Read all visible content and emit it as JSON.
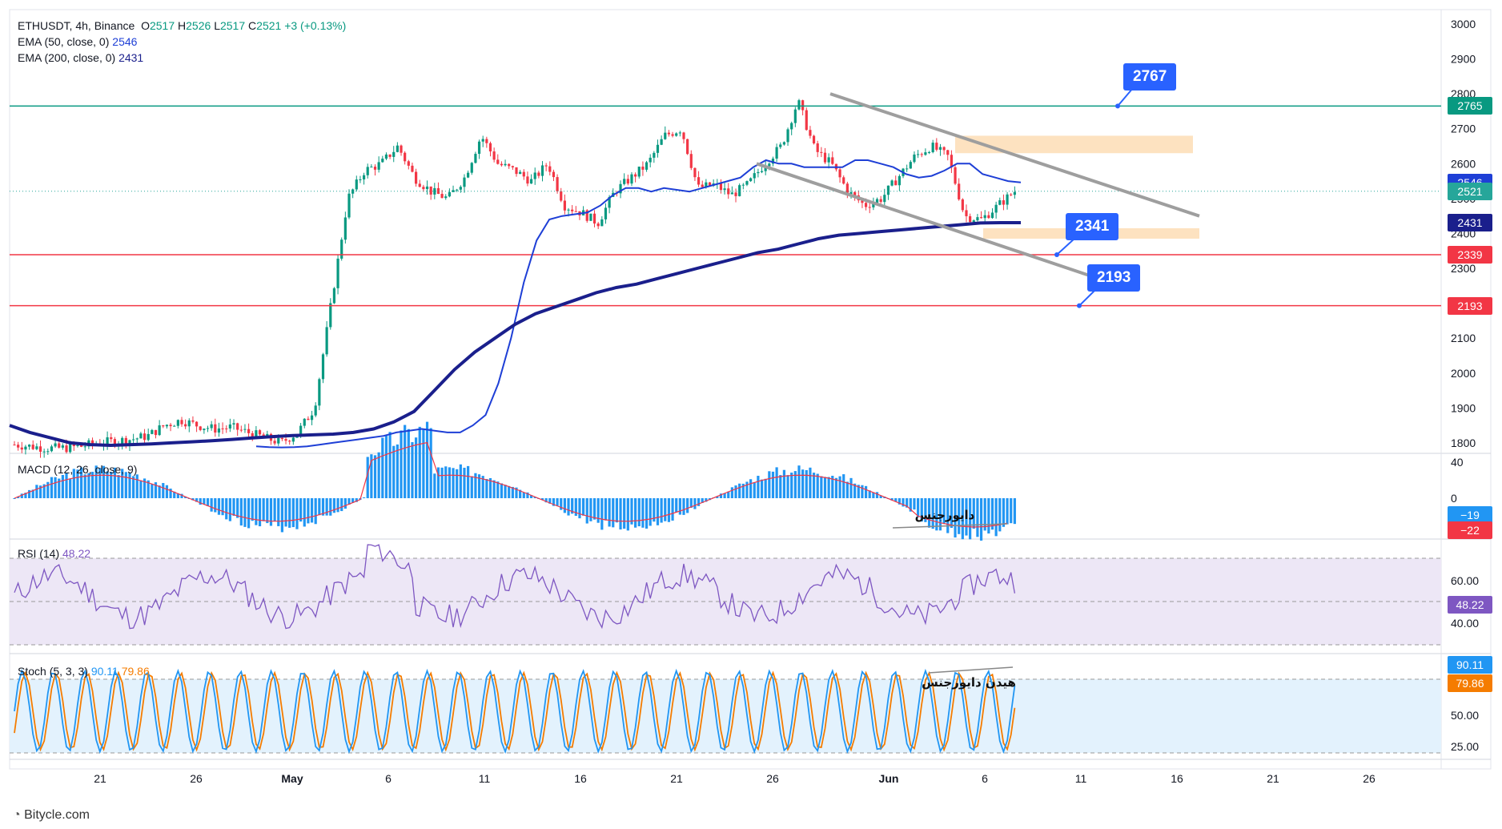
{
  "header": {
    "symbol": "ETHUSDT, 4h, Binance",
    "ohlc": {
      "o_label": "O",
      "o": "2517",
      "h_label": "H",
      "h": "2526",
      "l_label": "L",
      "l": "2517",
      "c_label": "C",
      "c": "2521",
      "change": "+3 (+0.13%)"
    },
    "ema50": {
      "label": "EMA (50, close, 0)",
      "value": "2546"
    },
    "ema200": {
      "label": "EMA (200, close, 0)",
      "value": "2431"
    }
  },
  "macd_legend": {
    "label": "MACD (12, 26, close, 9)",
    "value": ""
  },
  "rsi_legend": {
    "label": "RSI (14)",
    "value": "48.22"
  },
  "stoch_legend": {
    "label": "Stoch (5, 3, 3)",
    "k": "90.11",
    "d": "79.86"
  },
  "annotations": {
    "callout_2767": "2767",
    "callout_2341": "2341",
    "callout_2193": "2193",
    "macd_divergence": "دایورجنس",
    "stoch_divergence": "هیدن دایورجنس"
  },
  "price_tags": [
    {
      "value": "2765",
      "color": "#089981",
      "price": 2765
    },
    {
      "value": "2546",
      "color": "#1e3fd6",
      "price": 2546
    },
    {
      "value": "2521",
      "color": "#26a69a",
      "price": 2521
    },
    {
      "value": "2431",
      "color": "#1a1f8c",
      "price": 2431
    },
    {
      "value": "2339",
      "color": "#f23645",
      "price": 2339
    },
    {
      "value": "2193",
      "color": "#f23645",
      "price": 2193
    }
  ],
  "indicator_tags": {
    "macd": [
      {
        "value": "−19",
        "color": "#2196f3"
      },
      {
        "value": "−22",
        "color": "#f23645"
      }
    ],
    "rsi": [
      {
        "value": "48.22",
        "color": "#7e57c2"
      }
    ],
    "stoch": [
      {
        "value": "90.11",
        "color": "#2196f3"
      },
      {
        "value": "79.86",
        "color": "#f57c00"
      }
    ]
  },
  "footer": {
    "brand": "Bitycle.com"
  },
  "colors": {
    "up": "#089981",
    "down": "#f23645",
    "ema50": "#1e3fd6",
    "ema200": "#1a1f8c",
    "channel": "#9e9e9e",
    "zone": "#fde2c0"
  },
  "chart_data": {
    "type": "candlestick",
    "price_axis": {
      "ticks": [
        1800,
        1900,
        2000,
        2100,
        2200,
        2300,
        2400,
        2500,
        2600,
        2700,
        2800,
        2900,
        3000
      ],
      "range": [
        1770,
        3000
      ]
    },
    "x_ticks": [
      "21",
      "26",
      "May",
      "6",
      "11",
      "16",
      "21",
      "26",
      "Jun",
      "6",
      "11",
      "16",
      "21",
      "26"
    ],
    "horizontal_levels": [
      {
        "price": 2765,
        "color": "#089981"
      },
      {
        "price": 2339,
        "color": "#f23645"
      },
      {
        "price": 2193,
        "color": "#f23645"
      }
    ],
    "macd": {
      "axis_ticks": [
        "40",
        "0"
      ],
      "macd_value": -19,
      "signal_value": -22
    },
    "rsi": {
      "axis_ticks": [
        "60.00",
        "40.00"
      ],
      "value": 48.22,
      "bands": [
        70,
        50,
        30
      ]
    },
    "stoch": {
      "axis_ticks": [
        "50.00",
        "25.00"
      ],
      "k": 90.11,
      "d": 79.86,
      "bands": [
        80,
        20
      ]
    },
    "close_path": [
      1795,
      1790,
      1785,
      1785,
      1790,
      1800,
      1805,
      1810,
      1820,
      1850,
      1865,
      1850,
      1840,
      1845,
      1830,
      1815,
      1800,
      1830,
      1900,
      2200,
      2500,
      2580,
      2600,
      2650,
      2560,
      2520,
      2500,
      2560,
      2680,
      2600,
      2580,
      2550,
      2600,
      2480,
      2460,
      2430,
      2520,
      2560,
      2600,
      2680,
      2700,
      2530,
      2540,
      2510,
      2540,
      2600,
      2650,
      2780,
      2640,
      2600,
      2520,
      2480,
      2500,
      2560,
      2620,
      2650,
      2620,
      2450,
      2440,
      2480,
      2521
    ],
    "ema50_path": [
      1790,
      1788,
      1787,
      1788,
      1790,
      1795,
      1800,
      1805,
      1810,
      1815,
      1820,
      1830,
      1835,
      1840,
      1835,
      1830,
      1830,
      1850,
      1880,
      1970,
      2100,
      2260,
      2380,
      2440,
      2450,
      2455,
      2460,
      2480,
      2510,
      2530,
      2530,
      2520,
      2530,
      2525,
      2520,
      2530,
      2540,
      2550,
      2560,
      2590,
      2610,
      2600,
      2600,
      2590,
      2590,
      2590,
      2590,
      2610,
      2610,
      2600,
      2590,
      2570,
      2560,
      2565,
      2580,
      2600,
      2600,
      2570,
      2560,
      2550,
      2546
    ],
    "ema200_path": [
      1850,
      1830,
      1815,
      1800,
      1795,
      1793,
      1795,
      1797,
      1800,
      1803,
      1806,
      1810,
      1814,
      1818,
      1821,
      1823,
      1825,
      1830,
      1840,
      1860,
      1890,
      1950,
      2010,
      2060,
      2100,
      2140,
      2170,
      2190,
      2210,
      2230,
      2245,
      2255,
      2270,
      2285,
      2300,
      2315,
      2330,
      2345,
      2355,
      2370,
      2385,
      2395,
      2400,
      2405,
      2410,
      2415,
      2420,
      2425,
      2430,
      2431,
      2431
    ]
  }
}
